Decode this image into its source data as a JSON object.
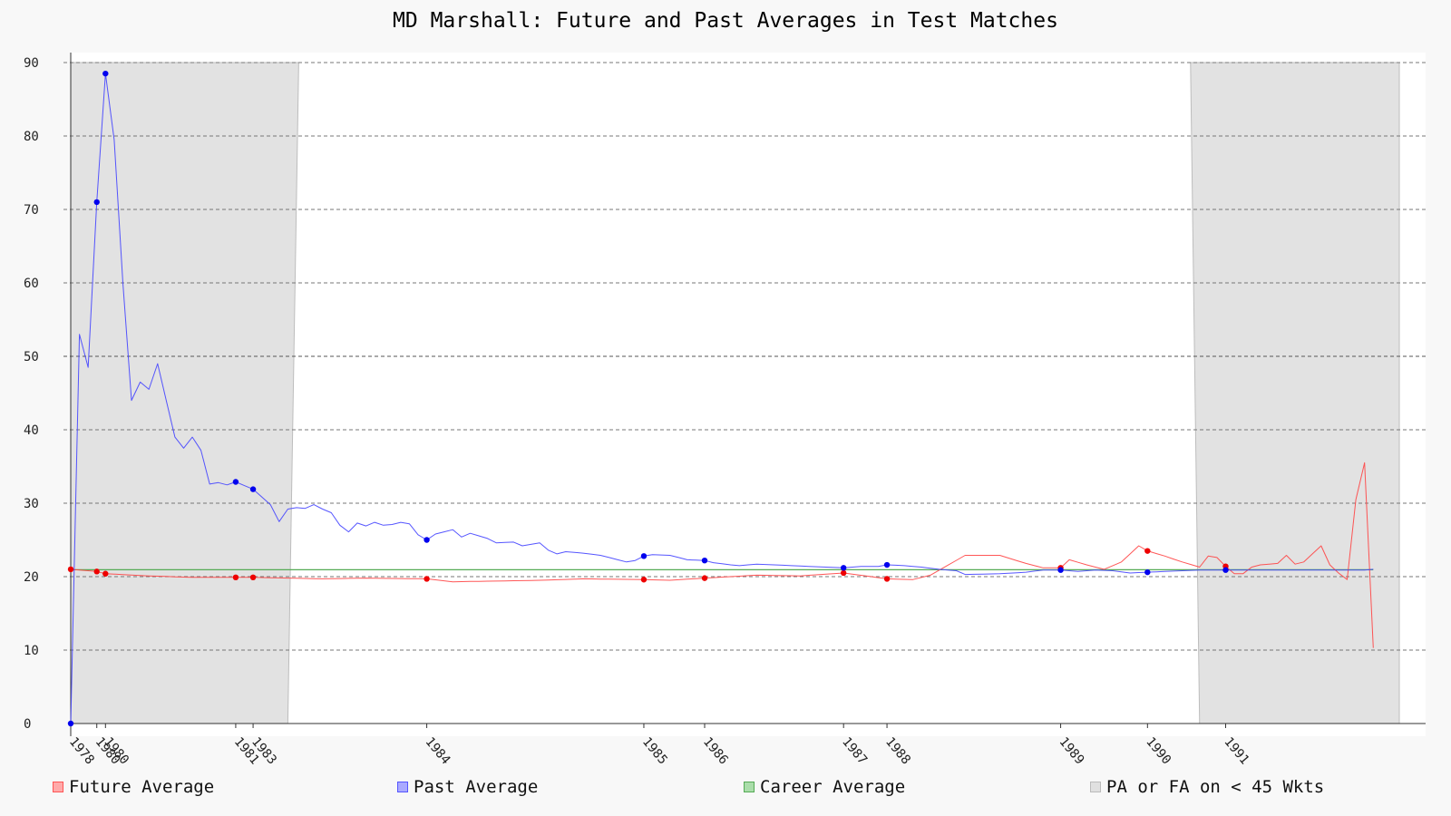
{
  "chart_data": {
    "type": "line",
    "title": "MD Marshall: Future and Past Averages in Test Matches",
    "xlabel": "",
    "ylabel": "",
    "ylim": [
      0,
      90
    ],
    "yticks": [
      0,
      10,
      20,
      30,
      40,
      50,
      60,
      70,
      80,
      90
    ],
    "grid": true,
    "legend_position": "bottom",
    "xaxis_note": "x axis is the sequence of Test matches; tick labels mark the year of the first match played that year",
    "year_ticks": [
      {
        "label": "1978",
        "match": 1
      },
      {
        "label": "1980",
        "match": 4
      },
      {
        "label": "1980",
        "match": 5
      },
      {
        "label": "1981",
        "match": 20
      },
      {
        "label": "1983",
        "match": 22
      },
      {
        "label": "1984",
        "match": 42
      },
      {
        "label": "1985",
        "match": 67
      },
      {
        "label": "1986",
        "match": 74
      },
      {
        "label": "1987",
        "match": 90
      },
      {
        "label": "1988",
        "match": 95
      },
      {
        "label": "1989",
        "match": 115
      },
      {
        "label": "1990",
        "match": 125
      },
      {
        "label": "1991",
        "match": 134
      }
    ],
    "total_matches": 154,
    "shaded_regions": [
      {
        "name": "PA or FA on < 45 Wkts",
        "from_match": 1,
        "to_match": 26
      },
      {
        "name": "PA or FA on < 45 Wkts",
        "from_match": 131,
        "to_match": 154
      }
    ],
    "series": [
      {
        "name": "Future Average",
        "color": "#ff4444",
        "keypoints": [
          [
            1,
            21.0
          ],
          [
            4,
            20.7
          ],
          [
            5,
            20.4
          ],
          [
            10,
            20.1
          ],
          [
            15,
            19.9
          ],
          [
            20,
            19.9
          ],
          [
            22,
            19.9
          ],
          [
            30,
            19.7
          ],
          [
            35,
            19.8
          ],
          [
            42,
            19.7
          ],
          [
            45,
            19.3
          ],
          [
            50,
            19.4
          ],
          [
            55,
            19.5
          ],
          [
            60,
            19.7
          ],
          [
            67,
            19.6
          ],
          [
            70,
            19.5
          ],
          [
            74,
            19.8
          ],
          [
            80,
            20.2
          ],
          [
            85,
            20.1
          ],
          [
            90,
            20.5
          ],
          [
            95,
            19.7
          ],
          [
            98,
            19.6
          ],
          [
            100,
            20.2
          ],
          [
            104,
            22.9
          ],
          [
            108,
            22.9
          ],
          [
            111,
            21.8
          ],
          [
            113,
            21.2
          ],
          [
            115,
            21.2
          ],
          [
            116,
            22.3
          ],
          [
            118,
            21.6
          ],
          [
            120,
            21.0
          ],
          [
            122,
            22.0
          ],
          [
            124,
            24.2
          ],
          [
            125,
            23.5
          ],
          [
            127,
            22.8
          ],
          [
            129,
            22.0
          ],
          [
            131,
            21.3
          ],
          [
            132,
            22.8
          ],
          [
            133,
            22.6
          ],
          [
            134,
            21.4
          ],
          [
            135,
            20.4
          ],
          [
            136,
            20.4
          ],
          [
            137,
            21.3
          ],
          [
            138,
            21.6
          ],
          [
            140,
            21.8
          ],
          [
            141,
            22.9
          ],
          [
            142,
            21.7
          ],
          [
            143,
            22.0
          ],
          [
            145,
            24.2
          ],
          [
            146,
            21.6
          ],
          [
            147,
            20.5
          ],
          [
            148,
            19.6
          ],
          [
            149,
            30.5
          ],
          [
            150,
            35.5
          ],
          [
            151,
            10.3
          ]
        ],
        "dotted_matches": [
          1,
          4,
          5,
          20,
          22,
          42,
          67,
          74,
          90,
          95,
          115,
          125,
          134
        ]
      },
      {
        "name": "Past Average",
        "color": "#4444ff",
        "keypoints": [
          [
            1,
            0.0
          ],
          [
            2,
            53.0
          ],
          [
            3,
            48.5
          ],
          [
            4,
            71.0
          ],
          [
            5,
            88.5
          ],
          [
            6,
            79.5
          ],
          [
            7,
            60.0
          ],
          [
            8,
            44.0
          ],
          [
            9,
            46.5
          ],
          [
            10,
            45.5
          ],
          [
            11,
            49.0
          ],
          [
            12,
            44.0
          ],
          [
            13,
            39.0
          ],
          [
            14,
            37.5
          ],
          [
            15,
            39.0
          ],
          [
            16,
            37.2
          ],
          [
            17,
            32.6
          ],
          [
            18,
            32.8
          ],
          [
            19,
            32.5
          ],
          [
            20,
            32.9
          ],
          [
            22,
            31.9
          ],
          [
            24,
            29.8
          ],
          [
            25,
            27.5
          ],
          [
            26,
            29.2
          ],
          [
            27,
            29.4
          ],
          [
            28,
            29.3
          ],
          [
            29,
            29.8
          ],
          [
            30,
            29.2
          ],
          [
            31,
            28.7
          ],
          [
            32,
            27.0
          ],
          [
            33,
            26.1
          ],
          [
            34,
            27.3
          ],
          [
            35,
            26.9
          ],
          [
            36,
            27.4
          ],
          [
            37,
            27.0
          ],
          [
            38,
            27.1
          ],
          [
            39,
            27.4
          ],
          [
            40,
            27.2
          ],
          [
            41,
            25.7
          ],
          [
            42,
            25.0
          ],
          [
            43,
            25.8
          ],
          [
            45,
            26.4
          ],
          [
            46,
            25.4
          ],
          [
            47,
            25.9
          ],
          [
            49,
            25.2
          ],
          [
            50,
            24.6
          ],
          [
            52,
            24.7
          ],
          [
            53,
            24.2
          ],
          [
            55,
            24.6
          ],
          [
            56,
            23.6
          ],
          [
            57,
            23.1
          ],
          [
            58,
            23.4
          ],
          [
            60,
            23.2
          ],
          [
            62,
            22.9
          ],
          [
            64,
            22.3
          ],
          [
            65,
            22.0
          ],
          [
            66,
            22.2
          ],
          [
            67,
            22.8
          ],
          [
            68,
            23.0
          ],
          [
            70,
            22.9
          ],
          [
            72,
            22.3
          ],
          [
            74,
            22.2
          ],
          [
            75,
            21.9
          ],
          [
            77,
            21.6
          ],
          [
            78,
            21.5
          ],
          [
            80,
            21.7
          ],
          [
            82,
            21.6
          ],
          [
            84,
            21.5
          ],
          [
            86,
            21.4
          ],
          [
            88,
            21.3
          ],
          [
            90,
            21.2
          ],
          [
            92,
            21.4
          ],
          [
            94,
            21.4
          ],
          [
            95,
            21.6
          ],
          [
            97,
            21.5
          ],
          [
            99,
            21.3
          ],
          [
            101,
            21.0
          ],
          [
            103,
            20.8
          ],
          [
            104,
            20.3
          ],
          [
            108,
            20.4
          ],
          [
            111,
            20.6
          ],
          [
            113,
            20.9
          ],
          [
            115,
            20.9
          ],
          [
            117,
            20.7
          ],
          [
            119,
            20.9
          ],
          [
            121,
            20.8
          ],
          [
            123,
            20.5
          ],
          [
            125,
            20.6
          ],
          [
            127,
            20.7
          ],
          [
            129,
            20.8
          ],
          [
            131,
            20.9
          ],
          [
            134,
            20.9
          ],
          [
            140,
            20.9
          ],
          [
            145,
            20.9
          ],
          [
            150,
            20.9
          ],
          [
            151,
            21.0
          ]
        ],
        "dotted_matches": [
          1,
          4,
          5,
          20,
          22,
          42,
          67,
          74,
          90,
          95,
          115,
          125,
          134
        ]
      },
      {
        "name": "Career Average",
        "color": "#55aa55",
        "value": 20.94
      }
    ]
  },
  "legend": [
    {
      "label": "Future Average",
      "fill": "#ffaaaa",
      "border": "#ff5555"
    },
    {
      "label": "Past Average",
      "fill": "#aaaaff",
      "border": "#5555ff"
    },
    {
      "label": "Career Average",
      "fill": "#aaddaa",
      "border": "#55aa55"
    },
    {
      "label": "PA or FA on < 45 Wkts",
      "fill": "#e0e0e0",
      "border": "#bbbbbb"
    }
  ]
}
